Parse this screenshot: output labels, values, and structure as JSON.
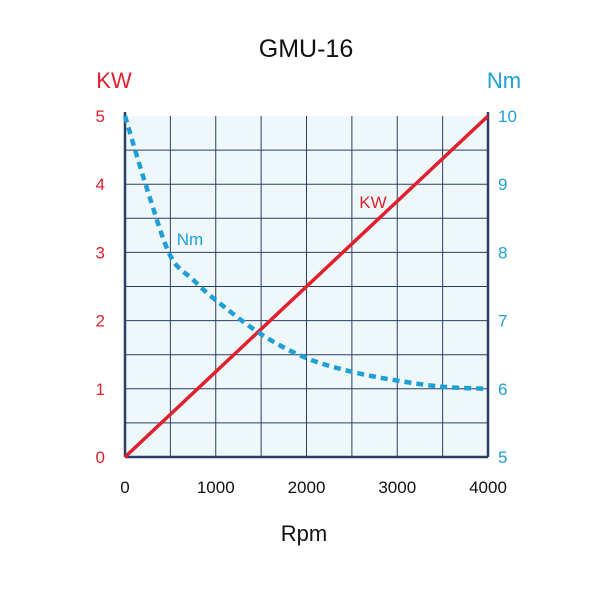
{
  "chart_data": {
    "type": "line",
    "title": "GMU-16",
    "xlabel": "Rpm",
    "xlim": [
      0,
      4000
    ],
    "x_ticks": [
      "0",
      "1000",
      "2000",
      "3000",
      "4000"
    ],
    "grid": true,
    "left_axis": {
      "label": "KW",
      "range": [
        0,
        5
      ],
      "ticks": [
        "0",
        "1",
        "2",
        "3",
        "4",
        "5"
      ],
      "color": "#e0202c"
    },
    "right_axis": {
      "label": "Nm",
      "range": [
        5,
        10
      ],
      "ticks": [
        "5",
        "6",
        "7",
        "8",
        "9",
        "10"
      ],
      "color": "#1e9fd6"
    },
    "series": [
      {
        "name": "KW",
        "axis": "left",
        "style": "solid",
        "color": "#e0202c",
        "x": [
          0,
          4000
        ],
        "y": [
          0,
          5
        ]
      },
      {
        "name": "Nm",
        "axis": "right",
        "style": "dashed",
        "color": "#1e9fd6",
        "x": [
          0,
          250,
          500,
          750,
          1000,
          1500,
          2000,
          2500,
          3000,
          3500,
          4000
        ],
        "y": [
          10,
          8.9,
          7.95,
          7.6,
          7.3,
          6.8,
          6.45,
          6.25,
          6.12,
          6.03,
          6.0
        ]
      }
    ],
    "background": "#eef8fb",
    "grid_color": "#2b3f66"
  }
}
